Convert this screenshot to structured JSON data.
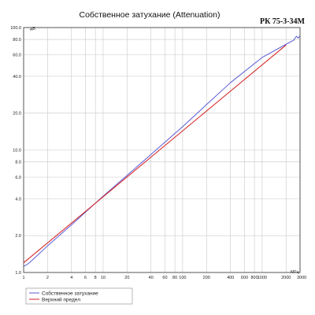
{
  "chart_data": {
    "type": "line",
    "title": "Собственное затухание (Attenuation)",
    "model_label": "РК 75-3-34М",
    "ylabel": "дБ",
    "xlabel": "МГц",
    "x_scale": "log",
    "y_scale": "log",
    "xlim": [
      1,
      3000
    ],
    "ylim": [
      1,
      100
    ],
    "grid": true,
    "x_ticks": [
      {
        "value": 1,
        "label": "1"
      },
      {
        "value": 2,
        "label": "2"
      },
      {
        "value": 4,
        "label": "4"
      },
      {
        "value": 6,
        "label": "6"
      },
      {
        "value": 8,
        "label": "8"
      },
      {
        "value": 10,
        "label": "10"
      },
      {
        "value": 20,
        "label": "20"
      },
      {
        "value": 40,
        "label": "40"
      },
      {
        "value": 60,
        "label": "60"
      },
      {
        "value": 80,
        "label": "80"
      },
      {
        "value": 100,
        "label": "100"
      },
      {
        "value": 200,
        "label": "200"
      },
      {
        "value": 400,
        "label": "400"
      },
      {
        "value": 600,
        "label": "600"
      },
      {
        "value": 800,
        "label": "800"
      },
      {
        "value": 1000,
        "label": "1000"
      },
      {
        "value": 2000,
        "label": "2000"
      },
      {
        "value": 3000,
        "label": "3000"
      }
    ],
    "y_ticks": [
      {
        "value": 1,
        "label": "1.0"
      },
      {
        "value": 2,
        "label": "2.0"
      },
      {
        "value": 4,
        "label": "4.0"
      },
      {
        "value": 6,
        "label": "6.0"
      },
      {
        "value": 8,
        "label": "8.0"
      },
      {
        "value": 10,
        "label": "10.0"
      },
      {
        "value": 20,
        "label": "20.0"
      },
      {
        "value": 40,
        "label": "40.0"
      },
      {
        "value": 60,
        "label": "60.0"
      },
      {
        "value": 80,
        "label": "80.0"
      },
      {
        "value": 100,
        "label": "100.0"
      }
    ],
    "legend_position": "bottom-left",
    "series": [
      {
        "name": "Собственное затухание",
        "color": "#5b5bd6",
        "x": [
          1,
          1.1,
          1.2,
          2,
          4,
          10,
          20,
          40,
          100,
          200,
          400,
          1000,
          2000,
          2500,
          2700,
          2850,
          3000
        ],
        "y": [
          1.12,
          1.16,
          1.21,
          1.65,
          2.45,
          4.2,
          6.2,
          9.2,
          15.5,
          23.5,
          35.5,
          57,
          73,
          79,
          85,
          82,
          86
        ]
      },
      {
        "name": "Верхний предел",
        "color": "#d42020",
        "x": [
          1,
          2000
        ],
        "y": [
          1.2,
          72
        ]
      }
    ]
  }
}
